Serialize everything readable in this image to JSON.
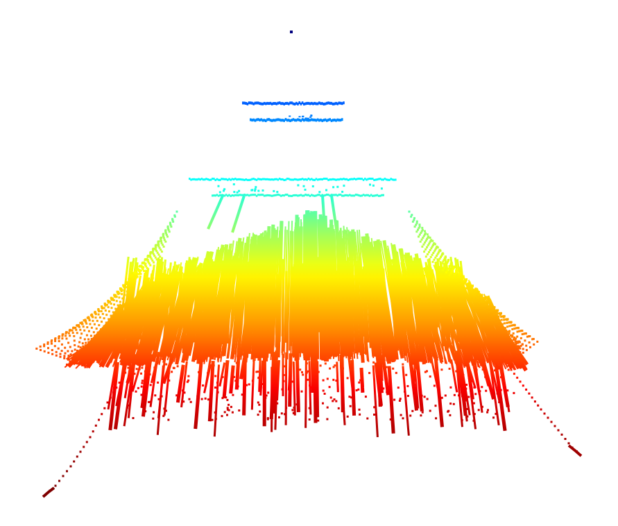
{
  "scene": {
    "kind": "3d-point-cloud",
    "background": "#ffffff",
    "colormap": "jet",
    "colormap_stops": [
      "#00007f",
      "#0000ff",
      "#007fff",
      "#00ffff",
      "#7fff7f",
      "#ffff00",
      "#ff7f00",
      "#ff0000",
      "#7f0000"
    ],
    "point_marker": "square",
    "structures": [
      "isolated-top-point",
      "upper-blue-line",
      "lower-blue-line",
      "cyan-crossbar",
      "cyan-second-crossbar",
      "green-yellow-orange-fan",
      "red-drooping-strands",
      "left-tail",
      "right-tail"
    ]
  }
}
